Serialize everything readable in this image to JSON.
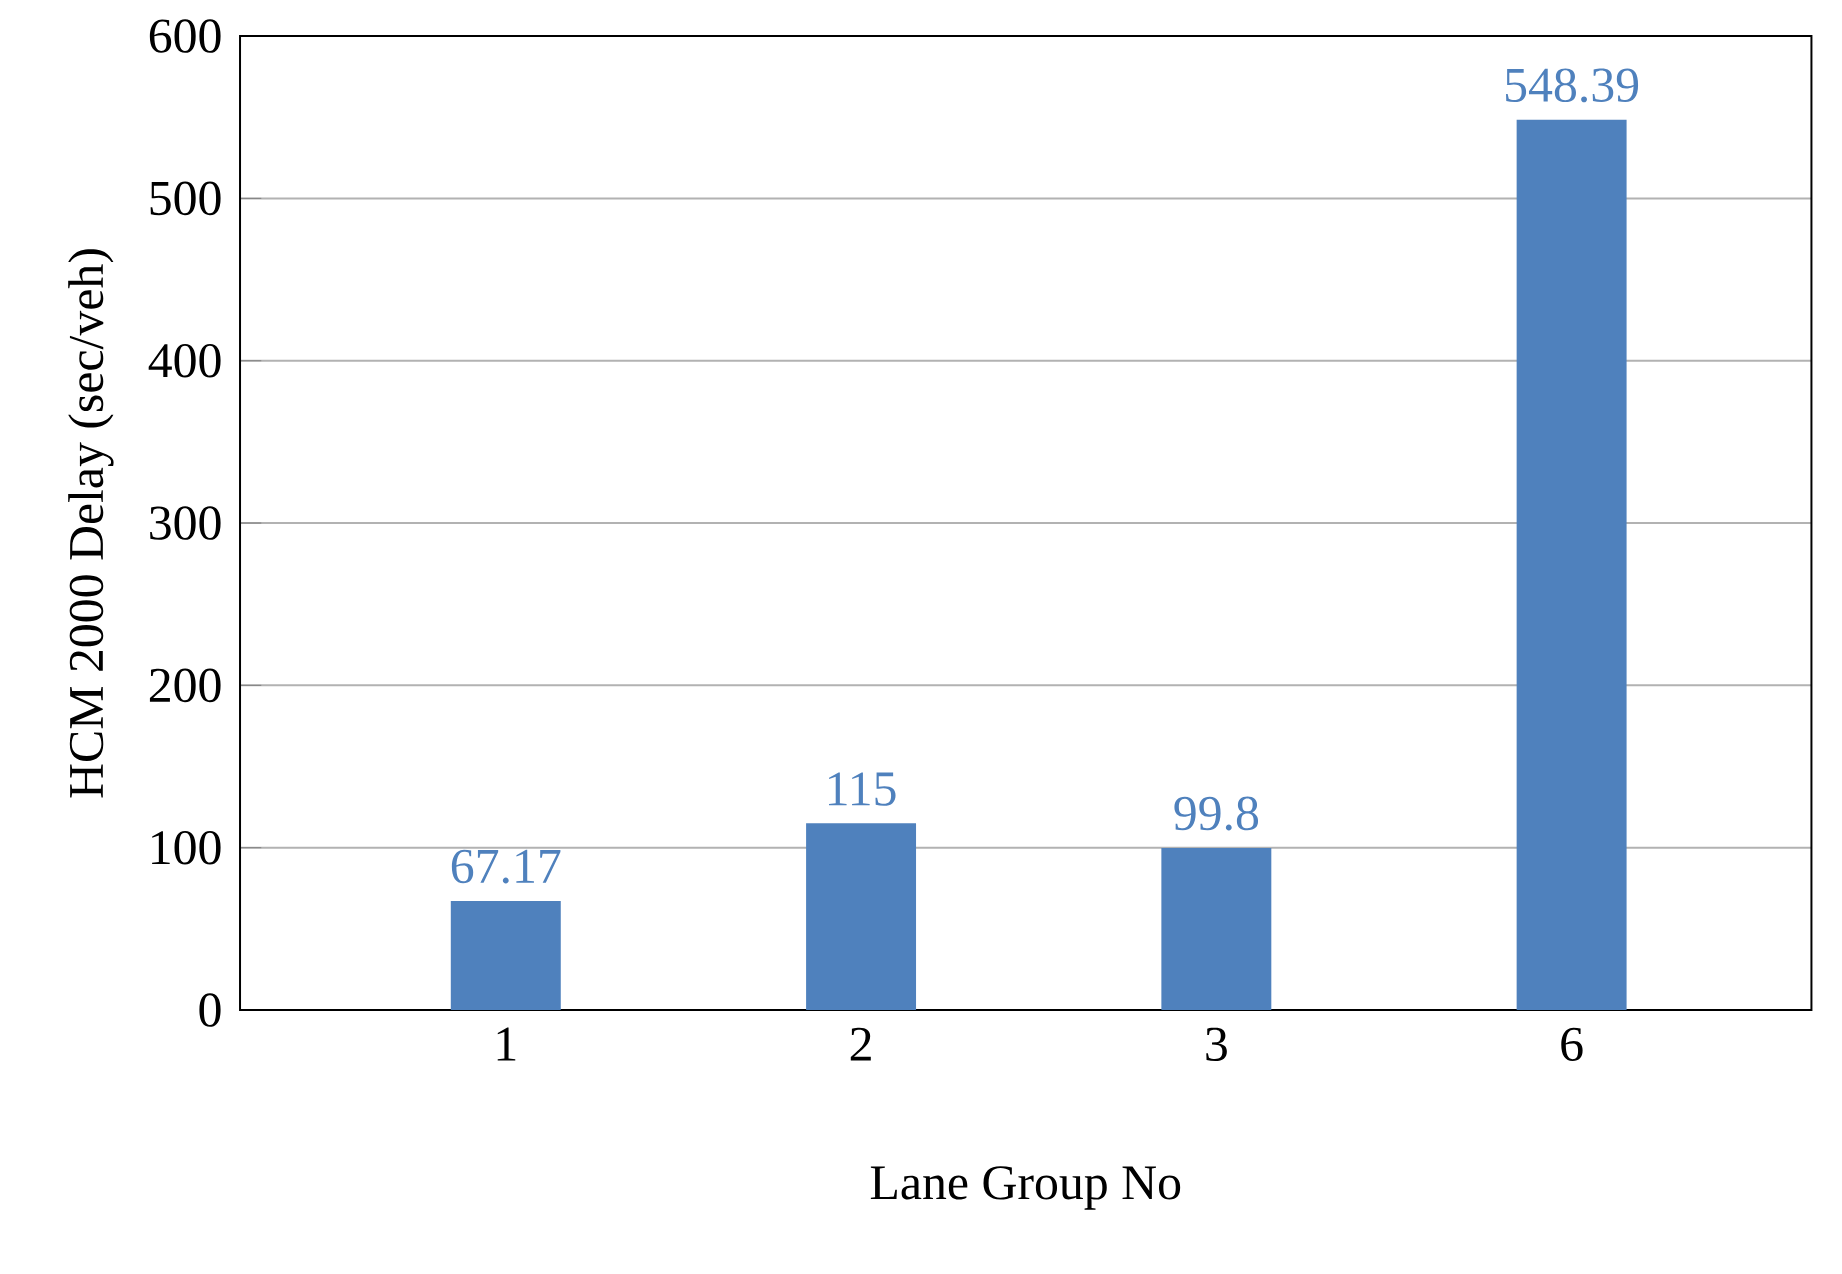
{
  "chart_data": {
    "type": "bar",
    "xlabel": "Lane Group No",
    "ylabel": "HCM 2000 Delay (sec/veh)",
    "categories": [
      "1",
      "2",
      "3",
      "6"
    ],
    "values": [
      67.17,
      115,
      99.8,
      548.39
    ],
    "color": "#4f81bd",
    "ylim": [
      0,
      600
    ],
    "yticks": [
      0,
      100,
      200,
      300,
      400,
      500,
      600
    ],
    "grid": "y",
    "data_labels": true
  }
}
